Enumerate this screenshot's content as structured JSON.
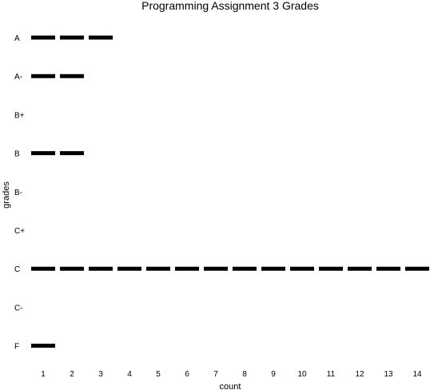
{
  "chart_data": {
    "type": "bar",
    "title": "Programming Assignment 3 Grades",
    "xlabel": "count",
    "ylabel": "grades",
    "categories": [
      "A",
      "A-",
      "B+",
      "B",
      "B-",
      "C+",
      "C",
      "C-",
      "F"
    ],
    "values": [
      3,
      2,
      0,
      2,
      0,
      0,
      14,
      0,
      1
    ],
    "x_ticks": [
      1,
      2,
      3,
      4,
      5,
      6,
      7,
      8,
      9,
      10,
      11,
      12,
      13,
      14
    ],
    "xlim": [
      0.5,
      14.5
    ],
    "grid": false,
    "legend": "none",
    "bar_color": "#000000",
    "style": "dashed segments, one per count"
  }
}
